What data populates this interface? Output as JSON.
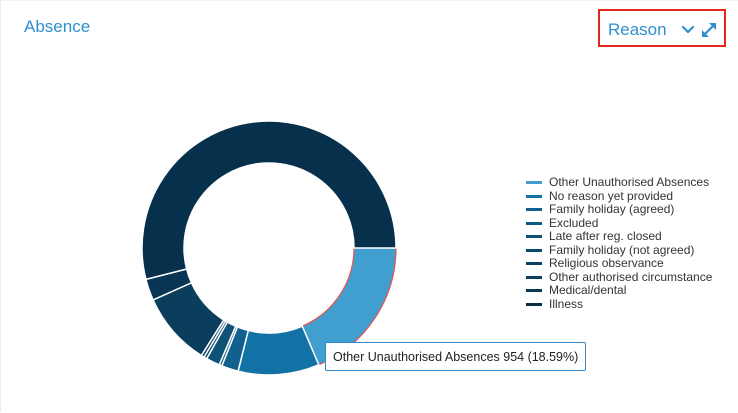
{
  "card": {
    "title": "Absence"
  },
  "toolbar": {
    "reason_label": "Reason"
  },
  "icons": {
    "dropdown": "chevron-down-icon",
    "expand": "expand-icon"
  },
  "colors": {
    "accent": "#2f8fce",
    "highlight_border": "#e1261c",
    "hover_stroke": "#e55353"
  },
  "chart_data": {
    "type": "pie",
    "donut": true,
    "legend_position": "right",
    "series": [
      {
        "name": "Other Unauthorised Absences",
        "value": 954,
        "percent": 18.59,
        "color": "#419fd0",
        "hovered": true
      },
      {
        "name": "No reason yet provided",
        "value": 530,
        "percent": 10.33,
        "color": "#1272a6"
      },
      {
        "name": "Family holiday (agreed)",
        "value": 110,
        "percent": 2.14,
        "color": "#11608e"
      },
      {
        "name": "Excluded",
        "value": 18,
        "percent": 0.35,
        "color": "#0f5a83"
      },
      {
        "name": "Late after reg. closed",
        "value": 90,
        "percent": 1.75,
        "color": "#0e5278"
      },
      {
        "name": "Family holiday (not agreed)",
        "value": 20,
        "percent": 0.39,
        "color": "#0c4a6d"
      },
      {
        "name": "Religious observance",
        "value": 20,
        "percent": 0.39,
        "color": "#0a4263"
      },
      {
        "name": "Other authorised circumstance",
        "value": 480,
        "percent": 9.35,
        "color": "#0b3d5c"
      },
      {
        "name": "Medical/dental",
        "value": 140,
        "percent": 2.73,
        "color": "#083654"
      },
      {
        "name": "Illness",
        "value": 2770,
        "percent": 53.98,
        "color": "#06304b"
      }
    ]
  },
  "tooltip": {
    "text": "Other Unauthorised Absences 954 (18.59%)"
  }
}
